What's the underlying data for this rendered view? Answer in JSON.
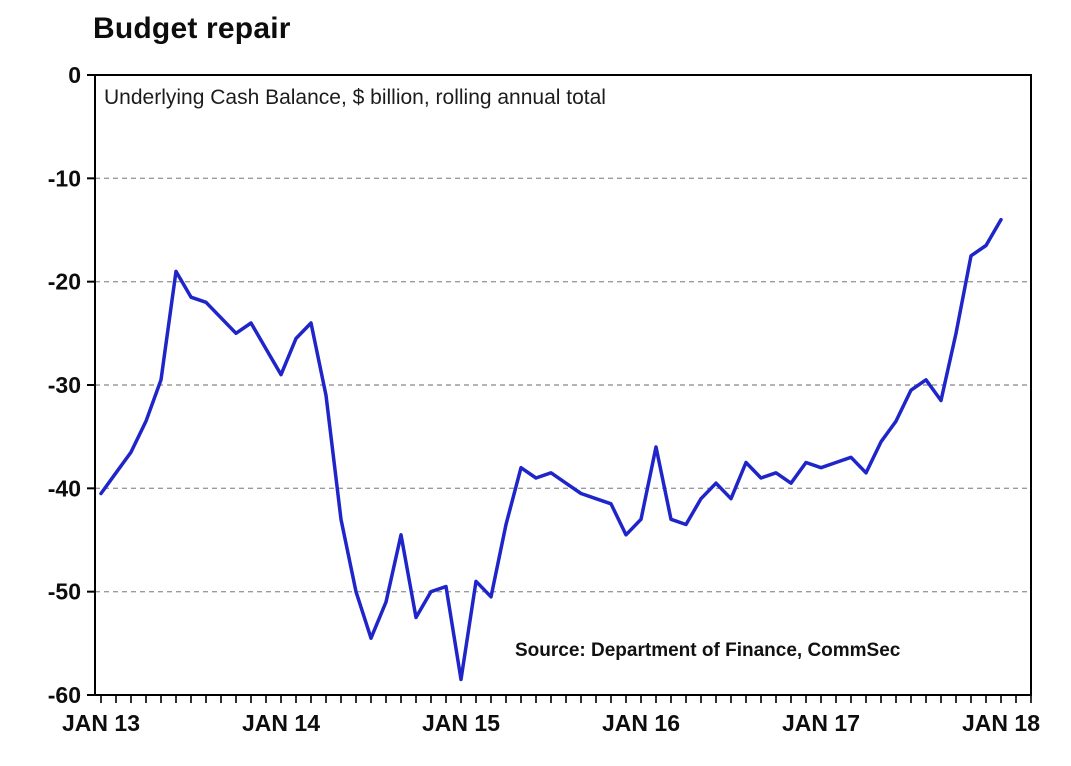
{
  "title": "Budget repair",
  "subtitle": "Underlying Cash Balance, $ billion, rolling annual total",
  "source": "Source: Department of Finance, CommSec",
  "chart_data": {
    "type": "line",
    "title": "Budget repair",
    "subtitle": "Underlying Cash Balance, $ billion, rolling annual total",
    "source": "Source: Department of Finance, CommSec",
    "ylabel": "Underlying cash balance ($ billion, rolling annual total)",
    "xlabel": "",
    "ylim": [
      -60,
      0
    ],
    "y_ticks": [
      0,
      -10,
      -20,
      -30,
      -40,
      -50,
      -60
    ],
    "x_tick_labels": [
      "JAN 13",
      "JAN 14",
      "JAN 15",
      "JAN 16",
      "JAN 17",
      "JAN 18"
    ],
    "x_tick_month_index": [
      0,
      12,
      24,
      36,
      48,
      60
    ],
    "grid": "horizontal dashed gridlines at every 10, plot box framed solid black",
    "legend": "none",
    "line_color": "#1f25c8",
    "categories": [
      "2013-01",
      "2013-02",
      "2013-03",
      "2013-04",
      "2013-05",
      "2013-06",
      "2013-07",
      "2013-08",
      "2013-09",
      "2013-10",
      "2013-11",
      "2013-12",
      "2014-01",
      "2014-02",
      "2014-03",
      "2014-04",
      "2014-05",
      "2014-06",
      "2014-07",
      "2014-08",
      "2014-09",
      "2014-10",
      "2014-11",
      "2014-12",
      "2015-01",
      "2015-02",
      "2015-03",
      "2015-04",
      "2015-05",
      "2015-06",
      "2015-07",
      "2015-08",
      "2015-09",
      "2015-10",
      "2015-11",
      "2015-12",
      "2016-01",
      "2016-02",
      "2016-03",
      "2016-04",
      "2016-05",
      "2016-06",
      "2016-07",
      "2016-08",
      "2016-09",
      "2016-10",
      "2016-11",
      "2016-12",
      "2017-01",
      "2017-02",
      "2017-03",
      "2017-04",
      "2017-05",
      "2017-06",
      "2017-07",
      "2017-08",
      "2017-09",
      "2017-10",
      "2017-11",
      "2017-12",
      "2018-01"
    ],
    "values": [
      -40.5,
      -38.5,
      -36.5,
      -33.5,
      -29.5,
      -19,
      -21.5,
      -22,
      -23.5,
      -25,
      -24,
      -26.5,
      -29,
      -25.5,
      -24,
      -31,
      -43,
      -50,
      -54.5,
      -51,
      -44.5,
      -52.5,
      -50,
      -49.5,
      -58.5,
      -49,
      -50.5,
      -43.5,
      -38,
      -39,
      -38.5,
      -39.5,
      -40.5,
      -41,
      -41.5,
      -44.5,
      -43,
      -36,
      -43,
      -43.5,
      -41,
      -39.5,
      -41,
      -37.5,
      -39,
      -38.5,
      -39.5,
      -37.5,
      -38,
      -37.5,
      -37,
      -38.5,
      -35.5,
      -33.5,
      -30.5,
      -29.5,
      -31.5,
      -25,
      -17.5,
      -16.5,
      -14
    ]
  }
}
